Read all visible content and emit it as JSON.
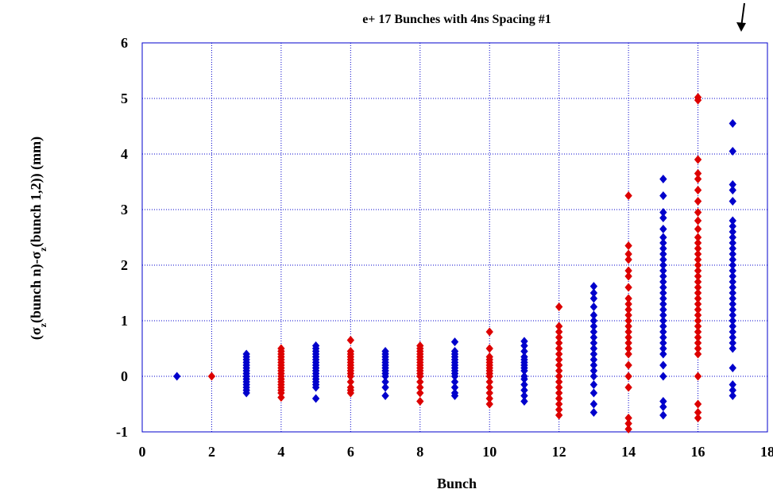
{
  "chart_data": {
    "type": "scatter",
    "title": "e+ 17 Bunches with 4ns Spacing #1",
    "xlabel": "Bunch",
    "ylabel_parts": [
      "(σ",
      "z",
      "(bunch n)-σ",
      "z",
      "(bunch 1,2)) (mm)"
    ],
    "xlim": [
      0,
      18
    ],
    "ylim": [
      -1,
      6
    ],
    "x_ticks": [
      "0",
      "2",
      "4",
      "6",
      "8",
      "10",
      "12",
      "14",
      "16",
      "18"
    ],
    "y_ticks": [
      "-1",
      "0",
      "1",
      "2",
      "3",
      "4",
      "5",
      "6"
    ],
    "grid": true,
    "marker": "diamond",
    "colors": {
      "blue": "#0000cc",
      "red": "#dd0000",
      "grid": "#0000cc"
    },
    "series": [
      {
        "x": 1,
        "color": "blue",
        "y": [
          0.0
        ]
      },
      {
        "x": 2,
        "color": "red",
        "y": [
          0.0
        ]
      },
      {
        "x": 3,
        "color": "blue",
        "y": [
          -0.3,
          -0.25,
          -0.2,
          -0.15,
          -0.1,
          -0.05,
          0.0,
          0.05,
          0.1,
          0.15,
          0.2,
          0.25,
          0.3,
          0.35,
          0.4
        ]
      },
      {
        "x": 4,
        "color": "red",
        "y": [
          -0.38,
          -0.3,
          -0.25,
          -0.2,
          -0.15,
          -0.1,
          -0.05,
          0.0,
          0.05,
          0.1,
          0.15,
          0.2,
          0.25,
          0.3,
          0.35,
          0.4,
          0.45,
          0.5
        ]
      },
      {
        "x": 5,
        "color": "blue",
        "y": [
          -0.4,
          -0.2,
          -0.15,
          -0.1,
          -0.05,
          0.0,
          0.05,
          0.1,
          0.15,
          0.2,
          0.25,
          0.3,
          0.35,
          0.4,
          0.45,
          0.5,
          0.55
        ]
      },
      {
        "x": 6,
        "color": "red",
        "y": [
          -0.3,
          -0.25,
          -0.2,
          -0.1,
          0.0,
          0.05,
          0.1,
          0.15,
          0.2,
          0.25,
          0.3,
          0.35,
          0.4,
          0.45,
          0.65
        ]
      },
      {
        "x": 7,
        "color": "blue",
        "y": [
          -0.35,
          -0.2,
          -0.1,
          0.0,
          0.05,
          0.1,
          0.15,
          0.2,
          0.25,
          0.3,
          0.35,
          0.4,
          0.45
        ]
      },
      {
        "x": 8,
        "color": "red",
        "y": [
          -0.45,
          -0.3,
          -0.2,
          -0.1,
          0.0,
          0.05,
          0.1,
          0.15,
          0.2,
          0.25,
          0.3,
          0.35,
          0.4,
          0.45,
          0.5,
          0.55
        ]
      },
      {
        "x": 9,
        "color": "blue",
        "y": [
          -0.35,
          -0.3,
          -0.2,
          -0.1,
          0.0,
          0.05,
          0.1,
          0.15,
          0.2,
          0.25,
          0.3,
          0.35,
          0.4,
          0.45,
          0.62
        ]
      },
      {
        "x": 10,
        "color": "red",
        "y": [
          -0.5,
          -0.4,
          -0.3,
          -0.2,
          -0.1,
          0.0,
          0.05,
          0.1,
          0.15,
          0.2,
          0.25,
          0.3,
          0.35,
          0.5,
          0.8
        ]
      },
      {
        "x": 11,
        "color": "blue",
        "y": [
          -0.45,
          -0.35,
          -0.25,
          -0.15,
          -0.05,
          0.0,
          0.1,
          0.15,
          0.2,
          0.25,
          0.3,
          0.35,
          0.45,
          0.55,
          0.63
        ]
      },
      {
        "x": 12,
        "color": "red",
        "y": [
          -0.7,
          -0.6,
          -0.5,
          -0.4,
          -0.3,
          -0.2,
          -0.1,
          0.0,
          0.1,
          0.2,
          0.3,
          0.4,
          0.5,
          0.6,
          0.7,
          0.8,
          0.9,
          1.25
        ]
      },
      {
        "x": 13,
        "color": "blue",
        "y": [
          -0.65,
          -0.5,
          -0.3,
          -0.15,
          0.0,
          0.1,
          0.2,
          0.3,
          0.4,
          0.5,
          0.6,
          0.7,
          0.8,
          0.9,
          1.0,
          1.1,
          1.25,
          1.4,
          1.5,
          1.62
        ]
      },
      {
        "x": 14,
        "color": "red",
        "y": [
          -0.95,
          -0.85,
          -0.75,
          -0.2,
          0.0,
          0.2,
          0.4,
          0.5,
          0.6,
          0.7,
          0.8,
          0.9,
          1.0,
          1.1,
          1.2,
          1.3,
          1.4,
          1.6,
          1.8,
          1.9,
          2.1,
          2.2,
          2.35,
          3.25
        ]
      },
      {
        "x": 15,
        "color": "blue",
        "y": [
          -0.7,
          -0.55,
          -0.45,
          0.0,
          0.2,
          0.4,
          0.5,
          0.6,
          0.7,
          0.8,
          0.9,
          1.0,
          1.1,
          1.2,
          1.3,
          1.4,
          1.5,
          1.6,
          1.7,
          1.8,
          1.9,
          2.0,
          2.1,
          2.2,
          2.3,
          2.4,
          2.5,
          2.65,
          2.85,
          2.95,
          3.25,
          3.55
        ]
      },
      {
        "x": 16,
        "color": "red",
        "y": [
          -0.75,
          -0.65,
          -0.5,
          0.0,
          0.4,
          0.5,
          0.6,
          0.7,
          0.8,
          0.9,
          1.0,
          1.1,
          1.2,
          1.3,
          1.4,
          1.5,
          1.6,
          1.7,
          1.8,
          1.9,
          2.0,
          2.1,
          2.2,
          2.3,
          2.4,
          2.5,
          2.65,
          2.8,
          2.95,
          3.15,
          3.35,
          3.55,
          3.65,
          3.9,
          4.97,
          5.02
        ]
      },
      {
        "x": 17,
        "color": "blue",
        "y": [
          -0.35,
          -0.25,
          -0.15,
          0.15,
          0.5,
          0.6,
          0.7,
          0.8,
          0.9,
          1.0,
          1.1,
          1.2,
          1.3,
          1.4,
          1.5,
          1.6,
          1.7,
          1.8,
          1.9,
          2.0,
          2.1,
          2.2,
          2.3,
          2.4,
          2.5,
          2.6,
          2.7,
          2.8,
          3.15,
          3.35,
          3.45,
          4.05,
          4.55
        ]
      }
    ]
  }
}
